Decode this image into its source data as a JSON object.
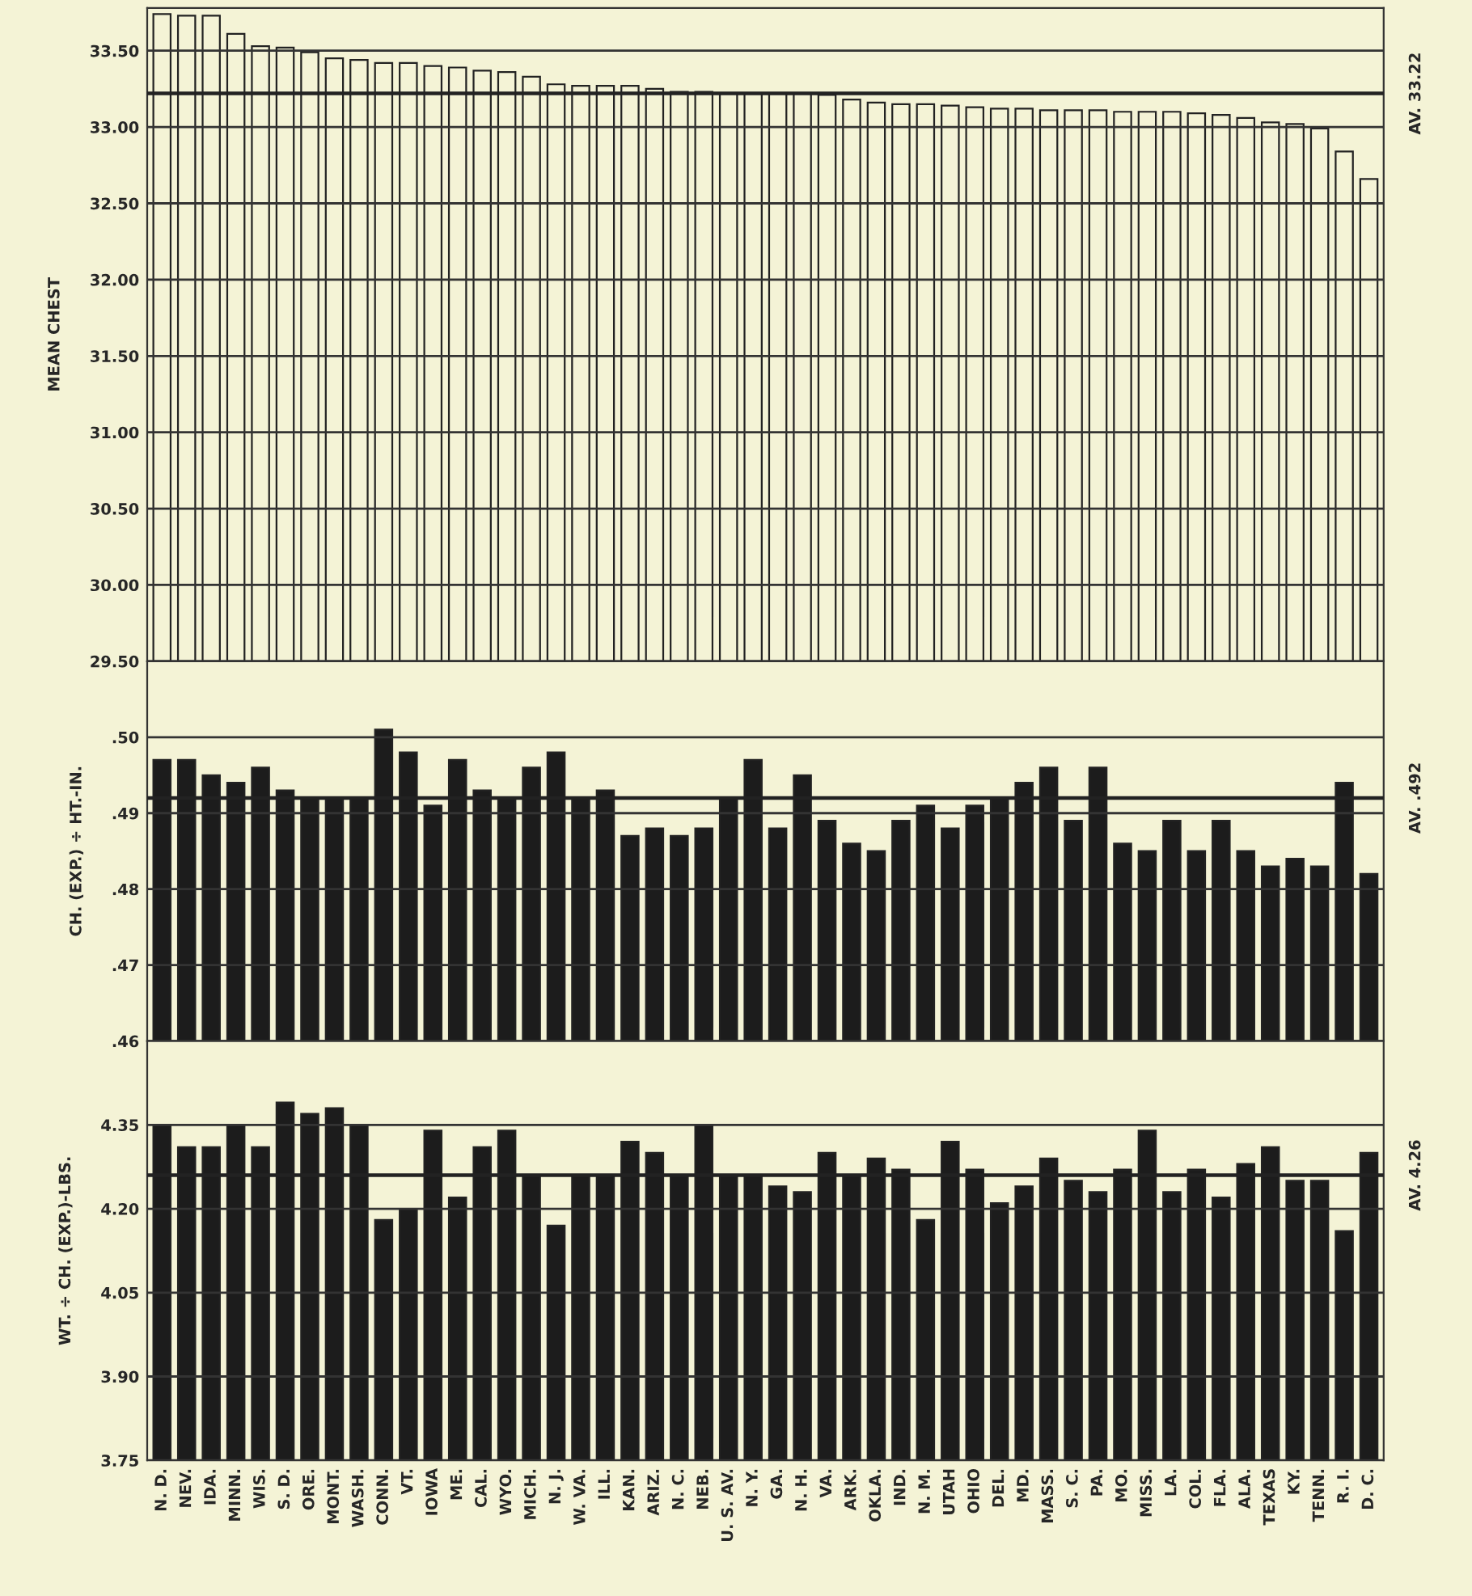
{
  "chart_data": [
    {
      "type": "bar",
      "ylabel": "MEAN CHEST",
      "series": [
        {
          "color": "#f4f3d6",
          "values": [
            33.74,
            33.73,
            33.73,
            33.61,
            33.53,
            33.52,
            33.49,
            33.45,
            33.44,
            33.42,
            33.42,
            33.4,
            33.39,
            33.37,
            33.36,
            33.33,
            33.28,
            33.27,
            33.27,
            33.27,
            33.25,
            33.23,
            33.23,
            33.22,
            33.22,
            33.22,
            33.22,
            33.21,
            33.18,
            33.16,
            33.15,
            33.15,
            33.14,
            33.13,
            33.12,
            33.12,
            33.11,
            33.11,
            33.11,
            33.1,
            33.1,
            33.1,
            33.09,
            33.08,
            33.06,
            33.03,
            33.02,
            32.99,
            32.84,
            32.66
          ]
        }
      ],
      "ylim": [
        29.5,
        33.78
      ],
      "yticks": [
        {
          "value": 29.5,
          "label": "29.50"
        },
        {
          "value": 30,
          "label": "30.00"
        },
        {
          "value": 30.5,
          "label": "30.50"
        },
        {
          "value": 31,
          "label": "31.00"
        },
        {
          "value": 31.5,
          "label": "31.50"
        },
        {
          "value": 32,
          "label": "32.00"
        },
        {
          "value": 32.5,
          "label": "32.50"
        },
        {
          "value": 33,
          "label": "33.00"
        },
        {
          "value": 33.5,
          "label": "33.50"
        }
      ],
      "ref_lines": [
        {
          "axis": "y",
          "value": 33.22,
          "label": "AV. 33.22",
          "color": "#222222"
        }
      ],
      "grid": "y",
      "tick_labels": "y"
    },
    {
      "type": "bar",
      "ylabel": "CH. (EXP.) ÷ HT.-IN.",
      "series": [
        {
          "color": "#1c1c1c",
          "values": [
            0.497,
            0.497,
            0.495,
            0.494,
            0.496,
            0.493,
            0.492,
            0.492,
            0.492,
            0.501,
            0.498,
            0.491,
            0.497,
            0.493,
            0.492,
            0.496,
            0.498,
            0.492,
            0.493,
            0.487,
            0.488,
            0.487,
            0.488,
            0.492,
            0.497,
            0.488,
            0.495,
            0.489,
            0.486,
            0.485,
            0.489,
            0.491,
            0.488,
            0.491,
            0.492,
            0.494,
            0.496,
            0.489,
            0.496,
            0.486,
            0.485,
            0.489,
            0.485,
            0.489,
            0.485,
            0.483,
            0.484,
            0.483,
            0.494,
            0.482
          ]
        }
      ],
      "ylim": [
        0.46,
        0.51
      ],
      "yticks": [
        {
          "value": 0.46,
          "label": ".46"
        },
        {
          "value": 0.47,
          "label": ".47"
        },
        {
          "value": 0.48,
          "label": ".48"
        },
        {
          "value": 0.49,
          "label": ".49"
        },
        {
          "value": 0.5,
          "label": ".50"
        }
      ],
      "ref_lines": [
        {
          "axis": "y",
          "value": 0.492,
          "label": "AV. .492",
          "color": "#222222"
        }
      ],
      "grid": "y",
      "tick_labels": "y"
    },
    {
      "type": "bar",
      "ylabel": "WT. ÷ CH. (EXP.)-LBS.",
      "categories": [
        "N. D.",
        "NEV.",
        "IDA.",
        "MINN.",
        "WIS.",
        "S. D.",
        "ORE.",
        "MONT.",
        "WASH.",
        "CONN.",
        "VT.",
        "IOWA",
        "ME.",
        "CAL.",
        "WYO.",
        "MICH.",
        "N. J.",
        "W. VA.",
        "ILL.",
        "KAN.",
        "ARIZ.",
        "N. C.",
        "NEB.",
        "U. S. AV.",
        "N. Y.",
        "GA.",
        "N. H.",
        "VA.",
        "ARK.",
        "OKLA.",
        "IND.",
        "N. M.",
        "UTAH",
        "OHIO",
        "DEL.",
        "MD.",
        "MASS.",
        "S. C.",
        "PA.",
        "MO.",
        "MISS.",
        "LA.",
        "COL.",
        "FLA.",
        "ALA.",
        "TEXAS",
        "KY.",
        "TENN.",
        "R. I.",
        "D. C."
      ],
      "series": [
        {
          "color": "#1c1c1c",
          "values": [
            4.35,
            4.31,
            4.31,
            4.35,
            4.31,
            4.39,
            4.37,
            4.38,
            4.35,
            4.18,
            4.2,
            4.34,
            4.22,
            4.31,
            4.34,
            4.26,
            4.17,
            4.26,
            4.26,
            4.32,
            4.3,
            4.26,
            4.35,
            4.26,
            4.26,
            4.24,
            4.23,
            4.3,
            4.26,
            4.29,
            4.27,
            4.18,
            4.32,
            4.27,
            4.21,
            4.24,
            4.29,
            4.25,
            4.23,
            4.27,
            4.34,
            4.23,
            4.27,
            4.22,
            4.28,
            4.31,
            4.25,
            4.25,
            4.16,
            4.3
          ]
        }
      ],
      "ylim": [
        3.75,
        4.5
      ],
      "yticks": [
        3.75,
        {
          "value": 3.9,
          "label": "3.90"
        },
        4.05,
        {
          "value": 4.2,
          "label": "4.20"
        },
        4.35
      ],
      "ref_lines": [
        {
          "axis": "y",
          "value": 4.26,
          "label": "AV. 4.26",
          "color": "#222222"
        }
      ],
      "grid": "y"
    }
  ]
}
